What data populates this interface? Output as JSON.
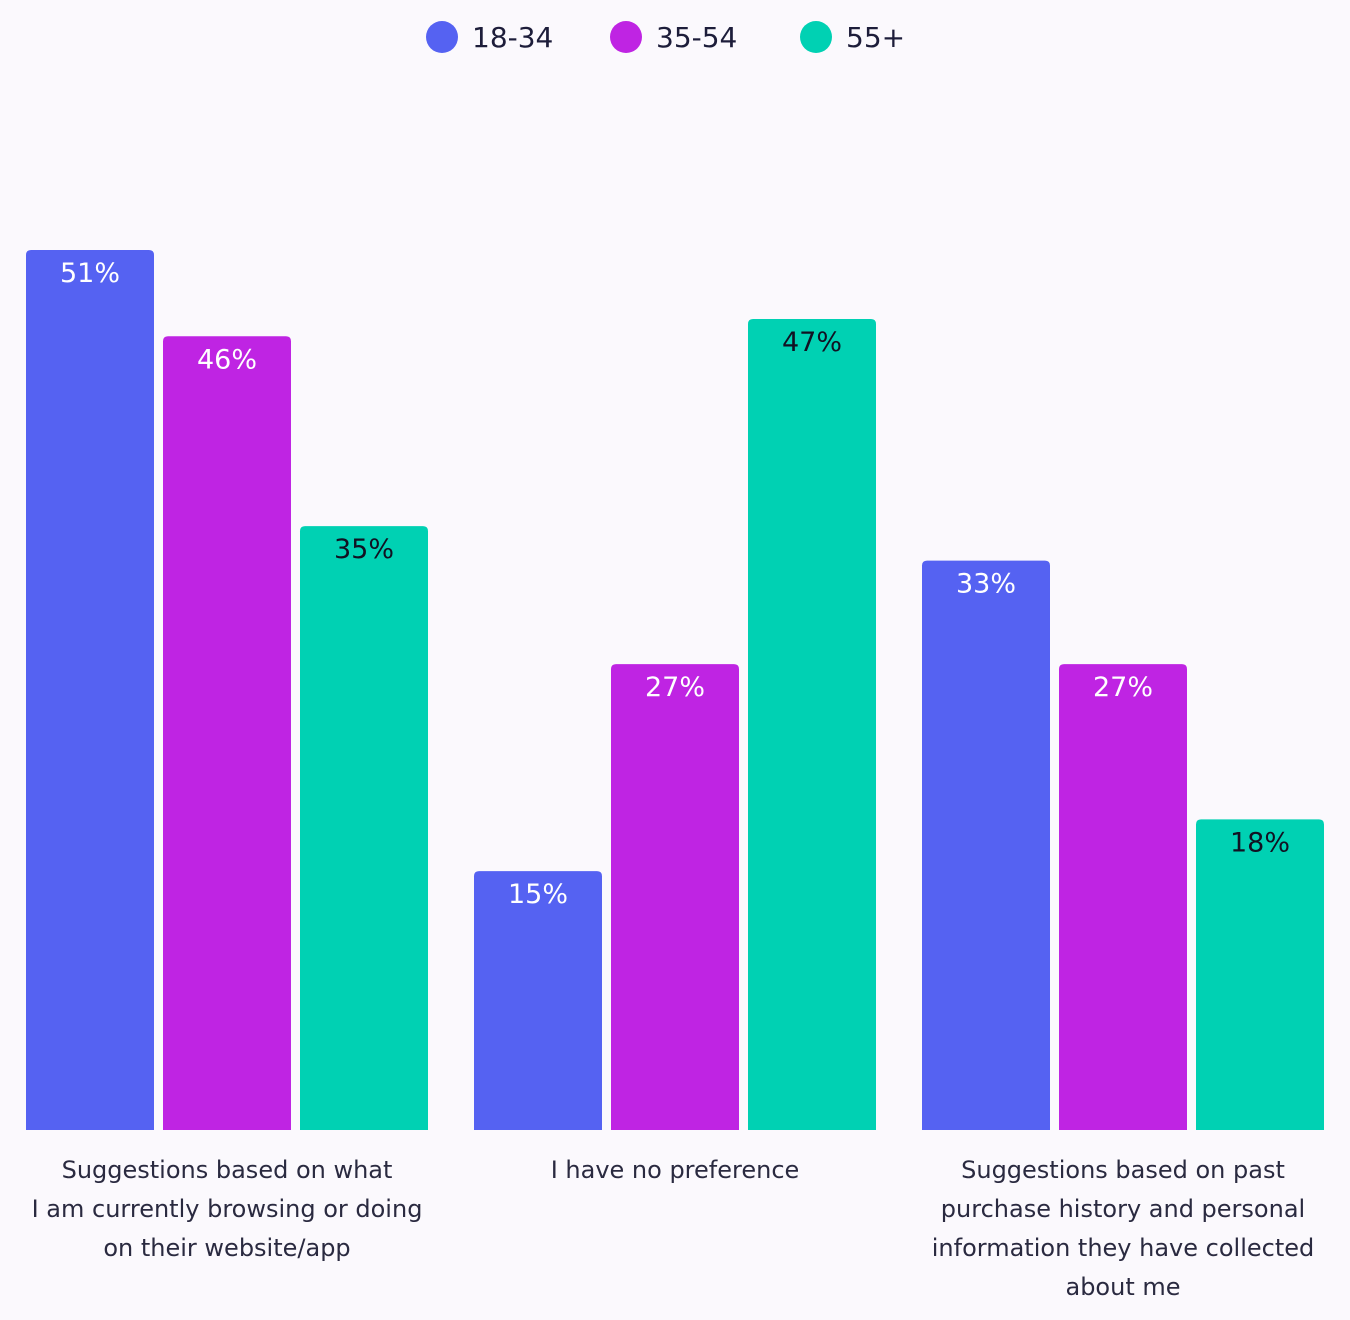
{
  "chart_data": {
    "type": "bar",
    "categories": [
      [
        "Suggestions based on what",
        "I am currently browsing or doing",
        "on their website/app"
      ],
      [
        "I have no preference"
      ],
      [
        "Suggestions based on past",
        "purchase history and personal",
        "information they have collected",
        "about me"
      ]
    ],
    "series": [
      {
        "name": "18-34",
        "color": "#5562f2",
        "label_color": "#ffffff",
        "values": [
          51,
          15,
          33
        ],
        "labels": [
          "51%",
          "15%",
          "33%"
        ]
      },
      {
        "name": "35-54",
        "color": "#bf24e3",
        "label_color": "#ffffff",
        "values": [
          46,
          27,
          27
        ],
        "labels": [
          "46%",
          "27%",
          "27%"
        ]
      },
      {
        "name": "55+",
        "color": "#00d1b3",
        "label_color": "#111122",
        "values": [
          35,
          47,
          18
        ],
        "labels": [
          "35%",
          "47%",
          "18%"
        ]
      }
    ],
    "ylim": [
      0,
      51
    ],
    "unit": "%",
    "legend_position": "top-center",
    "grid": false
  }
}
